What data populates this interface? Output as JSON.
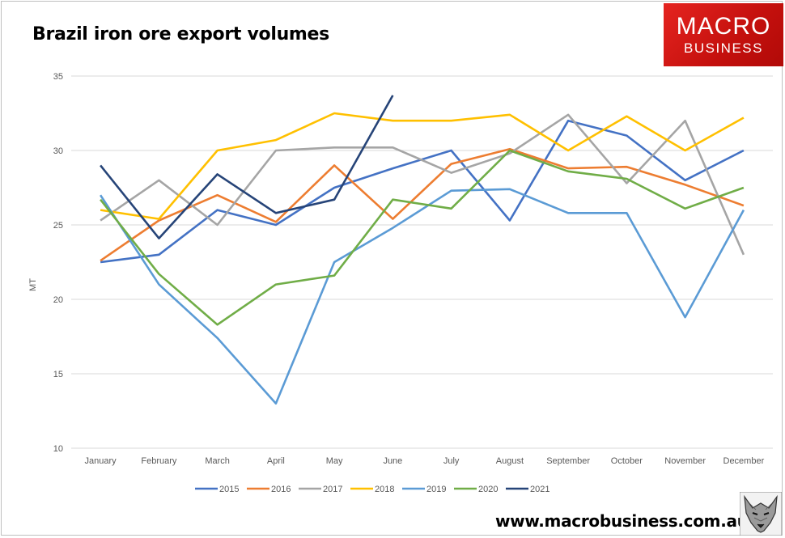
{
  "chart_data": {
    "type": "line",
    "title": "Brazil iron ore export volumes",
    "xlabel": "",
    "ylabel": "MT",
    "ylim": [
      10,
      35
    ],
    "yticks": [
      10,
      15,
      20,
      25,
      30,
      35
    ],
    "grid": true,
    "legend_position": "bottom",
    "categories": [
      "January",
      "February",
      "March",
      "April",
      "May",
      "June",
      "July",
      "August",
      "September",
      "October",
      "November",
      "December"
    ],
    "series": [
      {
        "name": "2015",
        "color": "#4472c4",
        "values": [
          22.5,
          23.0,
          26.0,
          25.0,
          27.5,
          28.8,
          30.0,
          25.3,
          32.0,
          31.0,
          28.0,
          30.0
        ]
      },
      {
        "name": "2016",
        "color": "#ed7d31",
        "values": [
          22.6,
          25.3,
          27.0,
          25.2,
          29.0,
          25.4,
          29.1,
          30.1,
          28.8,
          28.9,
          27.7,
          26.3
        ]
      },
      {
        "name": "2017",
        "color": "#a5a5a5",
        "values": [
          25.3,
          28.0,
          25.0,
          30.0,
          30.2,
          30.2,
          28.5,
          29.8,
          32.4,
          27.8,
          32.0,
          23.0
        ]
      },
      {
        "name": "2018",
        "color": "#ffc000",
        "values": [
          26.0,
          25.4,
          30.0,
          30.7,
          32.5,
          32.0,
          32.0,
          32.4,
          30.0,
          32.3,
          30.0,
          32.2
        ]
      },
      {
        "name": "2019",
        "color": "#5b9bd5",
        "values": [
          27.0,
          21.0,
          17.4,
          13.0,
          22.5,
          24.8,
          27.3,
          27.4,
          25.8,
          25.8,
          18.8,
          26.0
        ]
      },
      {
        "name": "2020",
        "color": "#70ad47",
        "values": [
          26.7,
          21.7,
          18.3,
          21.0,
          21.6,
          26.7,
          26.1,
          30.0,
          28.6,
          28.1,
          26.1,
          27.5
        ]
      },
      {
        "name": "2021",
        "color": "#264478",
        "values": [
          29.0,
          24.1,
          28.4,
          25.8,
          26.7,
          33.7,
          null,
          null,
          null,
          null,
          null,
          null
        ]
      }
    ]
  },
  "branding": {
    "logo_line1": "MACRO",
    "logo_line2": "BUSINESS",
    "website": "www.macrobusiness.com.au"
  }
}
